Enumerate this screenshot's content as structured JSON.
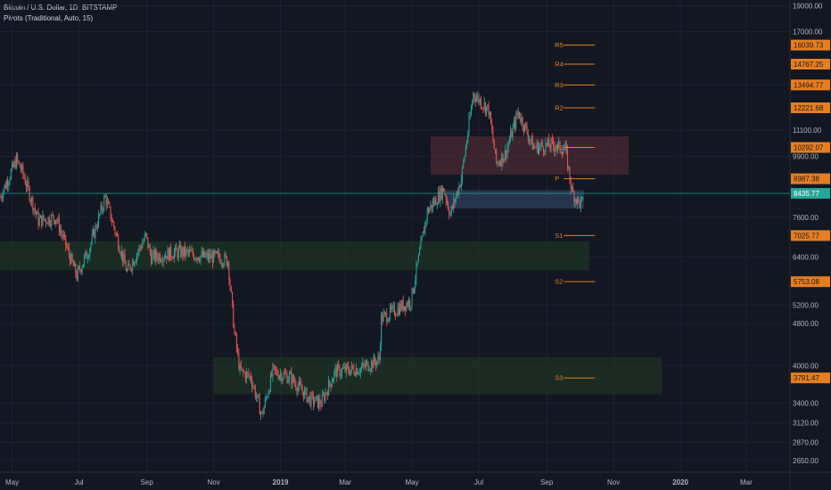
{
  "header": {
    "title": "Bitcoin / U.S. Dollar, 1D, BITSTAMP",
    "indicator": "Pivots (Traditional, Auto, 15)"
  },
  "colors": {
    "background": "#131722",
    "grid": "#1e2230",
    "up": "#26a69a",
    "down": "#ef5350",
    "pivot": "#e67e22",
    "current_price": "#26a69a",
    "resistance_zone": "#4a2a33",
    "support_zone": "#1e3324",
    "blue_zone": "#2a3a55"
  },
  "chart_data": {
    "type": "candlestick",
    "title": "Bitcoin / U.S. Dollar, 1D, BITSTAMP",
    "y_scale": "log",
    "ylim": [
      2520,
      19500
    ],
    "xlim": [
      "2018-04-20",
      "2020-04-10"
    ],
    "x_ticks": [
      {
        "date": "2018-05-01",
        "label": "May"
      },
      {
        "date": "2018-07-01",
        "label": "Jul"
      },
      {
        "date": "2018-09-01",
        "label": "Sep"
      },
      {
        "date": "2018-11-01",
        "label": "Nov"
      },
      {
        "date": "2019-01-01",
        "label": "2019"
      },
      {
        "date": "2019-03-01",
        "label": "Mar"
      },
      {
        "date": "2019-05-01",
        "label": "May"
      },
      {
        "date": "2019-07-01",
        "label": "Jul"
      },
      {
        "date": "2019-09-01",
        "label": "Sep"
      },
      {
        "date": "2019-11-01",
        "label": "Nov"
      },
      {
        "date": "2020-01-01",
        "label": "2020"
      },
      {
        "date": "2020-03-01",
        "label": "Mar"
      }
    ],
    "y_ticks": [
      "19000.00",
      "17000.00",
      "13500.00",
      "11100.00",
      "9900.00",
      "7600.00",
      "6400.00",
      "5200.00",
      "4800.00",
      "4000.00",
      "3400.00",
      "3120.00",
      "2870.00",
      "2650.00"
    ],
    "price_path": [
      [
        "2018-04-20",
        8300
      ],
      [
        "2018-05-05",
        9750
      ],
      [
        "2018-05-10",
        9300
      ],
      [
        "2018-05-25",
        7500
      ],
      [
        "2018-06-10",
        7600
      ],
      [
        "2018-06-29",
        5900
      ],
      [
        "2018-07-10",
        6600
      ],
      [
        "2018-07-25",
        8300
      ],
      [
        "2018-08-10",
        6400
      ],
      [
        "2018-08-14",
        6000
      ],
      [
        "2018-08-31",
        7000
      ],
      [
        "2018-09-05",
        6400
      ],
      [
        "2018-10-01",
        6550
      ],
      [
        "2018-10-25",
        6400
      ],
      [
        "2018-11-05",
        6400
      ],
      [
        "2018-11-14",
        6300
      ],
      [
        "2018-11-20",
        4600
      ],
      [
        "2018-11-25",
        3900
      ],
      [
        "2018-12-05",
        3800
      ],
      [
        "2018-12-15",
        3220
      ],
      [
        "2018-12-25",
        3900
      ],
      [
        "2019-01-10",
        3800
      ],
      [
        "2019-01-28",
        3450
      ],
      [
        "2019-02-07",
        3400
      ],
      [
        "2019-02-20",
        3900
      ],
      [
        "2019-03-15",
        3950
      ],
      [
        "2019-04-01",
        4100
      ],
      [
        "2019-04-03",
        4900
      ],
      [
        "2019-04-30",
        5300
      ],
      [
        "2019-05-15",
        7800
      ],
      [
        "2019-05-30",
        8600
      ],
      [
        "2019-06-05",
        7700
      ],
      [
        "2019-06-15",
        9000
      ],
      [
        "2019-06-26",
        13000
      ],
      [
        "2019-07-10",
        12100
      ],
      [
        "2019-07-17",
        9600
      ],
      [
        "2019-07-25",
        10000
      ],
      [
        "2019-08-06",
        12000
      ],
      [
        "2019-08-20",
        10300
      ],
      [
        "2019-09-05",
        10400
      ],
      [
        "2019-09-18",
        10200
      ],
      [
        "2019-09-24",
        8500
      ],
      [
        "2019-09-30",
        8100
      ],
      [
        "2019-10-04",
        8100
      ]
    ],
    "current_price": {
      "value": 8435.77,
      "label": "8435.77"
    },
    "pivots": [
      {
        "name": "R5",
        "value": 16039.73,
        "label": "16039.73"
      },
      {
        "name": "R4",
        "value": 14767.25,
        "label": "14767.25"
      },
      {
        "name": "R3",
        "value": 13494.77,
        "label": "13494.77"
      },
      {
        "name": "R2",
        "value": 12221.68,
        "label": "12221.68"
      },
      {
        "name": "R1",
        "value": 10292.07,
        "label": "10292.07"
      },
      {
        "name": "P",
        "value": 8987.38,
        "label": "8987.38"
      },
      {
        "name": "S1",
        "value": 7025.77,
        "label": "7025.77"
      },
      {
        "name": "S2",
        "value": 5753.08,
        "label": "5753.08"
      },
      {
        "name": "S3",
        "value": 3791.47,
        "label": "3791.47"
      }
    ],
    "pivot_span": [
      "2019-09-10",
      "2019-10-15"
    ],
    "zones": [
      {
        "kind": "resistance",
        "from": "2019-05-18",
        "to": "2019-11-15",
        "low": 9150,
        "high": 10800
      },
      {
        "kind": "current",
        "from": "2019-06-01",
        "to": "2019-10-05",
        "low": 7900,
        "high": 8550
      },
      {
        "kind": "support",
        "from": "2018-04-20",
        "to": "2019-10-10",
        "low": 6050,
        "high": 6850
      },
      {
        "kind": "support",
        "from": "2018-11-01",
        "to": "2019-12-15",
        "low": 3530,
        "high": 4150
      }
    ]
  }
}
